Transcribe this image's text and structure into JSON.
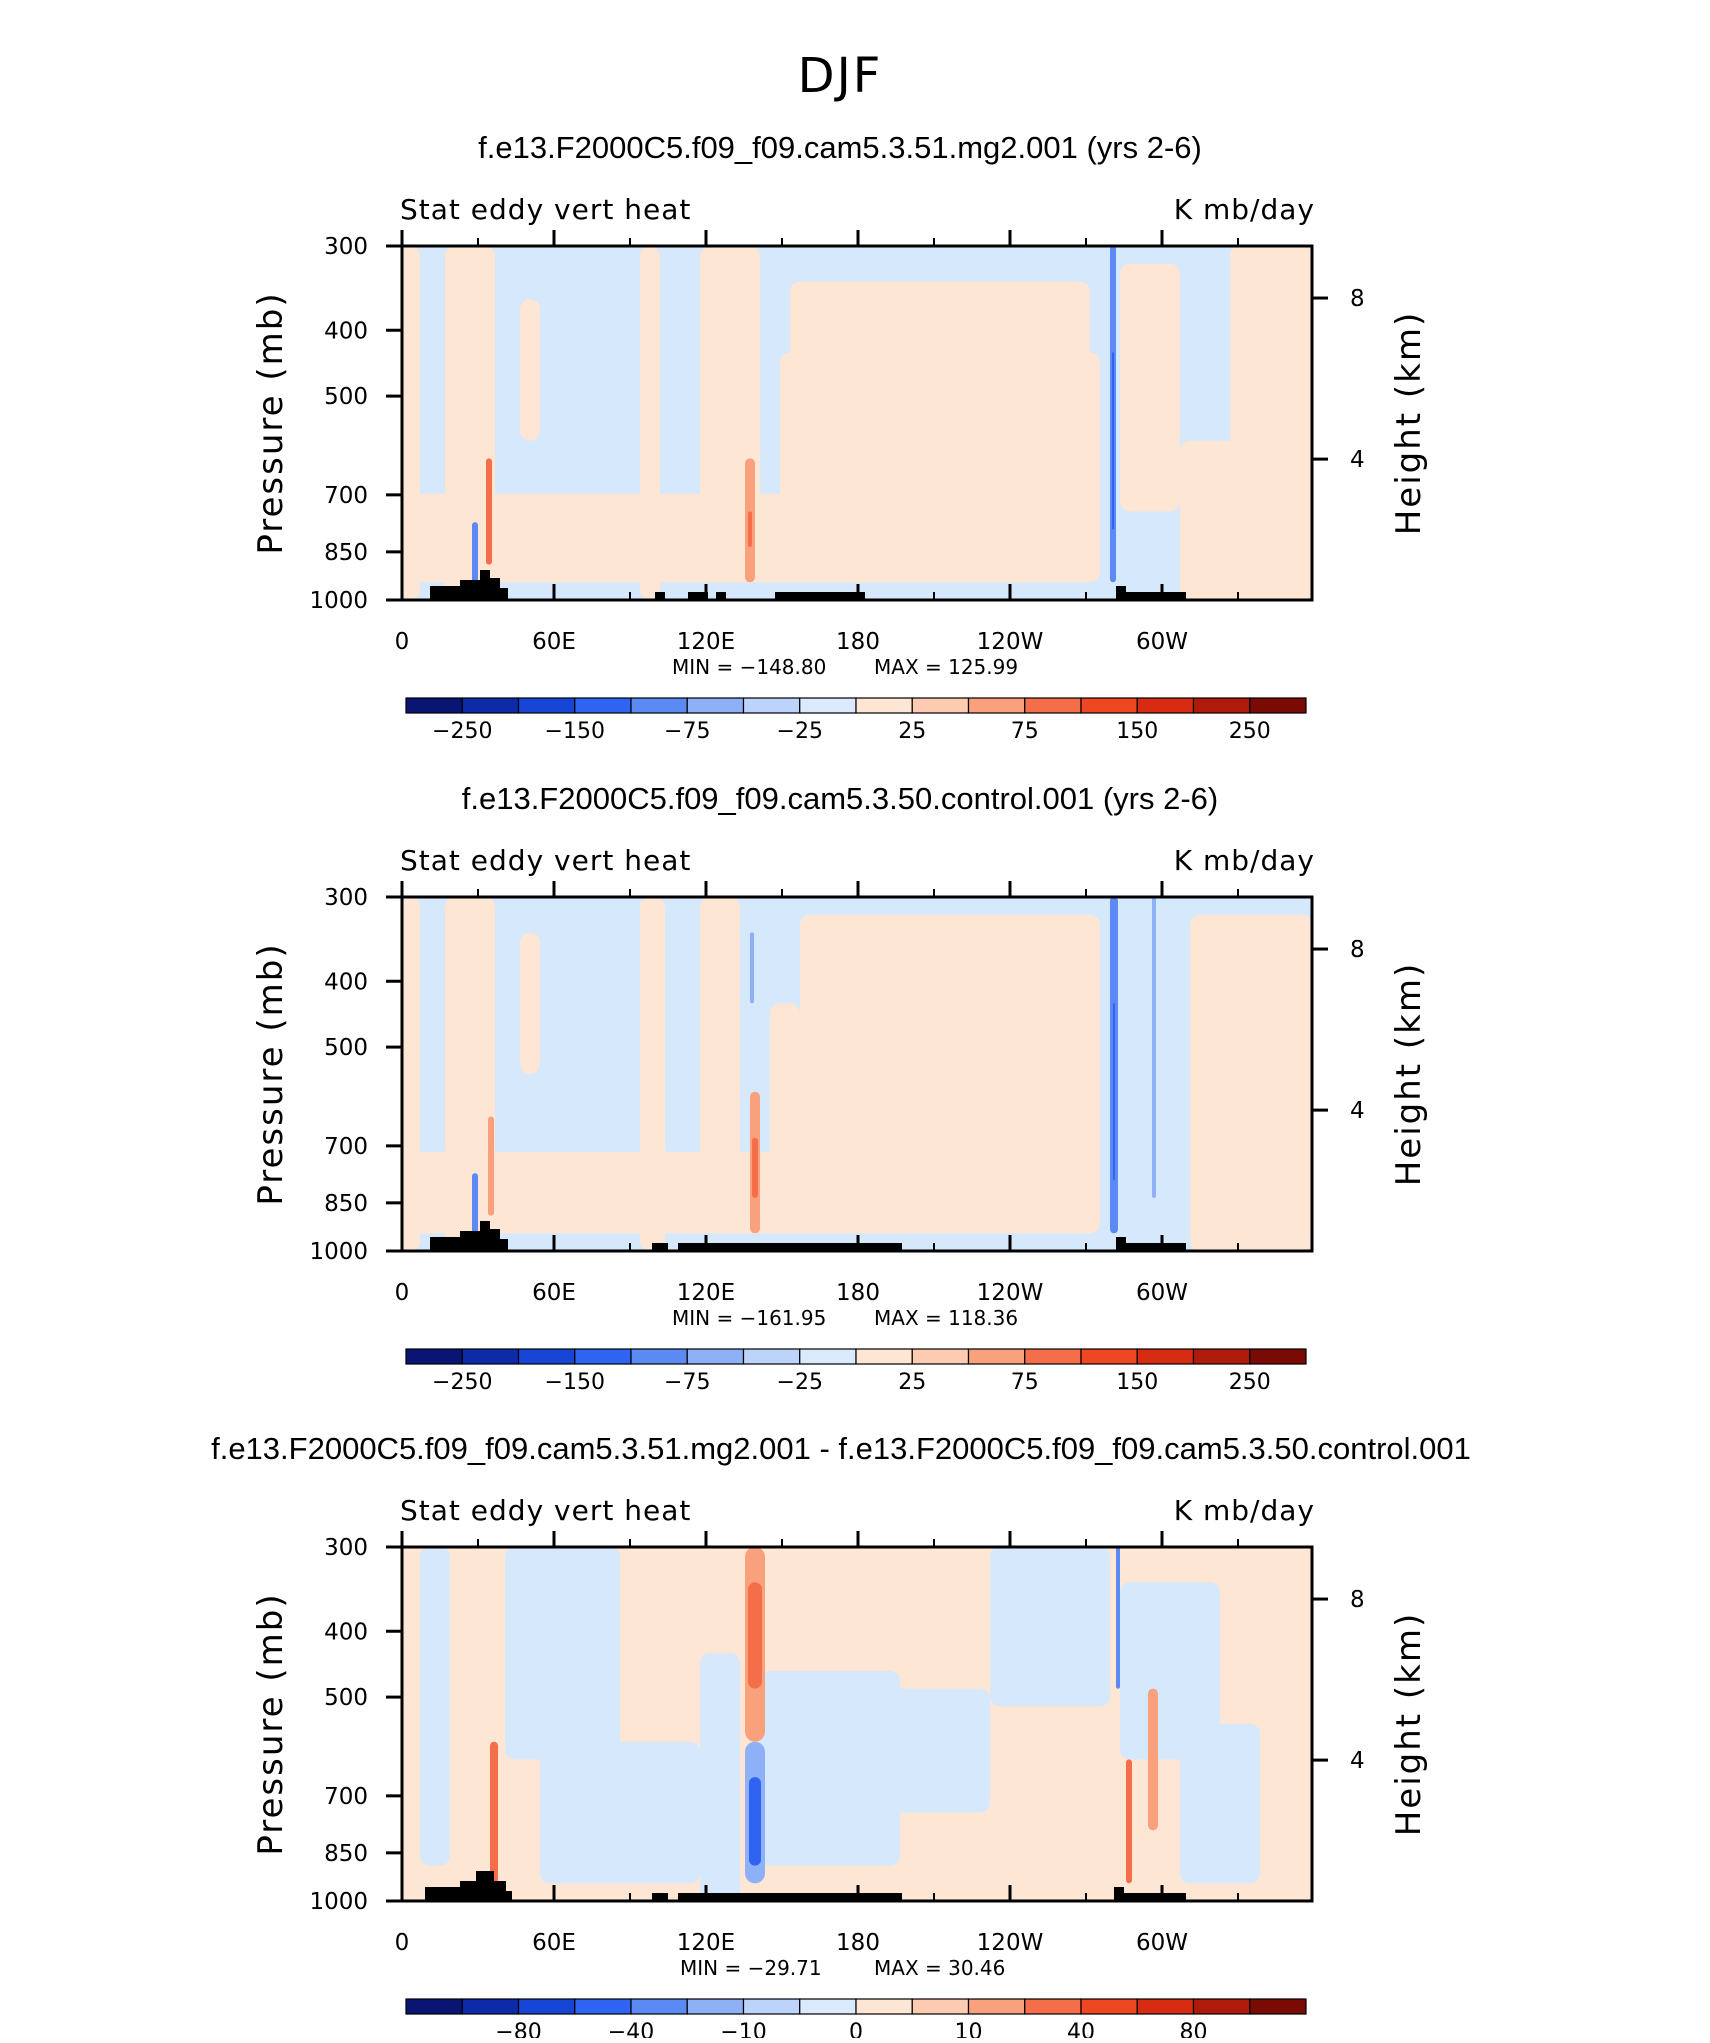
{
  "figure_title": "DJF",
  "chart_data": [
    {
      "type": "heatmap",
      "title": "f.e13.F2000C5.f09_f09.cam5.3.51.mg2.001 (yrs 2-6)",
      "left_label": "Stat eddy vert heat",
      "right_label": "K mb/day",
      "ylabel": "Pressure (mb)",
      "y2label": "Height (km)",
      "y_ticks": [
        "300",
        "400",
        "500",
        "700",
        "850",
        "1000"
      ],
      "y2_ticks": [
        "8",
        "4"
      ],
      "x_ticks": [
        "0",
        "60E",
        "120E",
        "180",
        "120W",
        "60W"
      ],
      "min": -148.8,
      "max": 125.99,
      "min_text": "MIN = −148.80",
      "max_text": "MAX = 125.99",
      "colorbar_labels": [
        "−250",
        "−150",
        "−75",
        "−25",
        "25",
        "75",
        "150",
        "250"
      ]
    },
    {
      "type": "heatmap",
      "title": "f.e13.F2000C5.f09_f09.cam5.3.50.control.001 (yrs 2-6)",
      "left_label": "Stat eddy vert heat",
      "right_label": "K mb/day",
      "ylabel": "Pressure (mb)",
      "y2label": "Height (km)",
      "y_ticks": [
        "300",
        "400",
        "500",
        "700",
        "850",
        "1000"
      ],
      "y2_ticks": [
        "8",
        "4"
      ],
      "x_ticks": [
        "0",
        "60E",
        "120E",
        "180",
        "120W",
        "60W"
      ],
      "min": -161.95,
      "max": 118.36,
      "min_text": "MIN = −161.95",
      "max_text": "MAX = 118.36",
      "colorbar_labels": [
        "−250",
        "−150",
        "−75",
        "−25",
        "25",
        "75",
        "150",
        "250"
      ]
    },
    {
      "type": "heatmap",
      "title": "f.e13.F2000C5.f09_f09.cam5.3.51.mg2.001 - f.e13.F2000C5.f09_f09.cam5.3.50.control.001",
      "left_label": "Stat eddy vert heat",
      "right_label": "K mb/day",
      "ylabel": "Pressure (mb)",
      "y2label": "Height (km)",
      "y_ticks": [
        "300",
        "400",
        "500",
        "700",
        "850",
        "1000"
      ],
      "y2_ticks": [
        "8",
        "4"
      ],
      "x_ticks": [
        "0",
        "60E",
        "120E",
        "180",
        "120W",
        "60W"
      ],
      "min": -29.71,
      "max": 30.46,
      "min_text": "MIN = −29.71",
      "max_text": "MAX = 30.46",
      "colorbar_labels": [
        "−80",
        "−40",
        "−10",
        "0",
        "10",
        "40",
        "80"
      ]
    }
  ],
  "colors": {
    "colorbar": [
      "#0a1473",
      "#0d2aa8",
      "#1746d6",
      "#2f63f2",
      "#5b8af5",
      "#8eb0f7",
      "#bcd3fa",
      "#dbe9fc",
      "#fde6d4",
      "#fccbb1",
      "#f9a07c",
      "#f46f49",
      "#ee4722",
      "#d82c12",
      "#b01a0b",
      "#7a0a04"
    ],
    "field_pos": "#fde6d4",
    "field_neg": "#d6e8fc",
    "topography": "#000000"
  }
}
